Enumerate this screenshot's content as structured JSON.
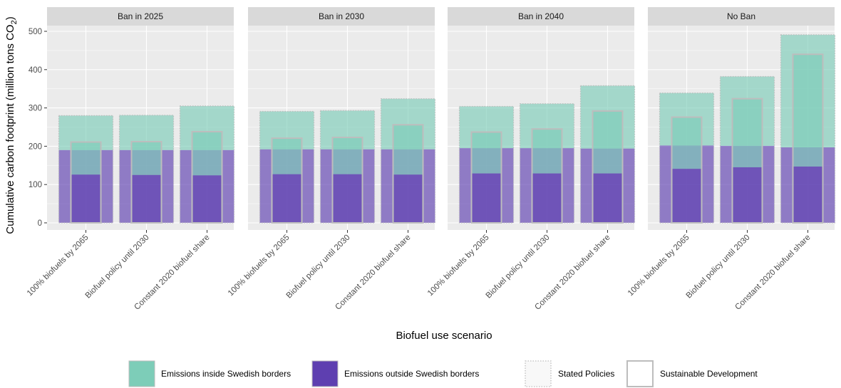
{
  "chart_data": {
    "type": "bar",
    "layout": "faceted stacked bars, two overlaid scenarios per bar",
    "xlabel": "Biofuel use scenario",
    "ylabel": "Cumulative carbon footprint (million tons CO",
    "ylabel_subscript": "2",
    "ylabel_suffix": ")",
    "ylim": [
      0,
      520
    ],
    "yticks": [
      0,
      100,
      200,
      300,
      400,
      500
    ],
    "grid": true,
    "legend_position": "bottom",
    "categories": [
      "100% biofuels by 2065",
      "Biofuel policy until 2030",
      "Constant 2020 biofuel share"
    ],
    "legend": {
      "fill": [
        {
          "label": "Emissions inside Swedish borders",
          "color": "#7dcdb8"
        },
        {
          "label": "Emissions outside Swedish borders",
          "color": "#5e3fb0"
        }
      ],
      "scenario": [
        {
          "label": "Stated Policies",
          "style": "dotted"
        },
        {
          "label": "Sustainable Development",
          "style": "solid"
        }
      ]
    },
    "facets": [
      {
        "title": "Ban in 2025",
        "stated_policies": {
          "outside": [
            190,
            190,
            190
          ],
          "total": [
            280,
            281,
            305
          ]
        },
        "sustainable_development": {
          "outside": [
            126,
            125,
            124
          ],
          "total": [
            211,
            212,
            238
          ]
        }
      },
      {
        "title": "Ban in 2030",
        "stated_policies": {
          "outside": [
            192,
            192,
            192
          ],
          "total": [
            291,
            293,
            324
          ]
        },
        "sustainable_development": {
          "outside": [
            127,
            127,
            126
          ],
          "total": [
            221,
            223,
            256
          ]
        }
      },
      {
        "title": "Ban in 2040",
        "stated_policies": {
          "outside": [
            195,
            195,
            194
          ],
          "total": [
            304,
            311,
            358
          ]
        },
        "sustainable_development": {
          "outside": [
            129,
            129,
            129
          ],
          "total": [
            237,
            245,
            292
          ]
        }
      },
      {
        "title": "No Ban",
        "stated_policies": {
          "outside": [
            202,
            201,
            197
          ],
          "total": [
            339,
            382,
            491
          ]
        },
        "sustainable_development": {
          "outside": [
            141,
            145,
            147
          ],
          "total": [
            276,
            324,
            440
          ]
        }
      }
    ]
  },
  "colors": {
    "inside": "#7dcdb8",
    "outside": "#5e3fb0",
    "panel_bg": "#ebebeb",
    "strip_bg": "#d9d9d9",
    "grid": "#ffffff",
    "bar_border": "#bdbdbd"
  }
}
